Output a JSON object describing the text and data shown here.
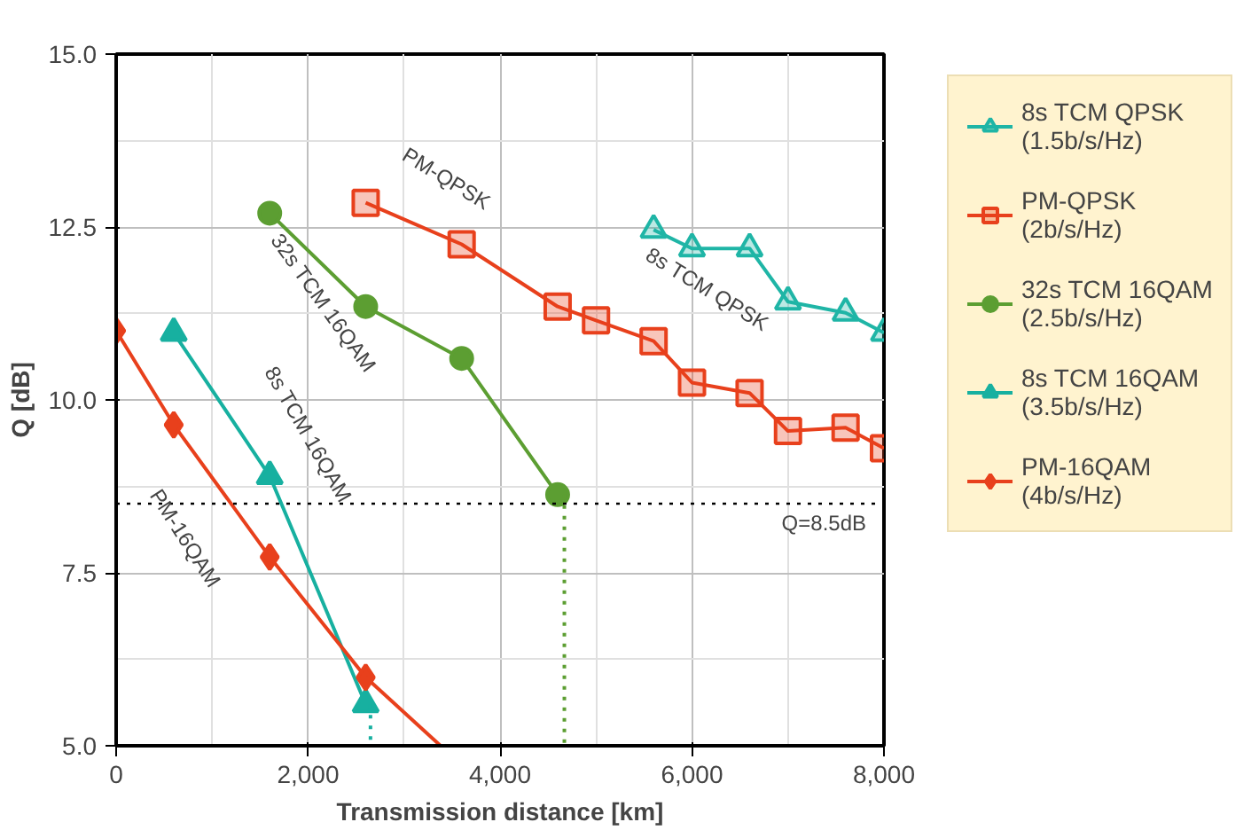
{
  "chart_data": {
    "type": "line",
    "xlabel": "Transmission distance [km]",
    "ylabel": "Q [dB]",
    "xlim": [
      0,
      8000
    ],
    "ylim": [
      5,
      15
    ],
    "xticks": [
      {
        "value": 0,
        "label": "0"
      },
      {
        "value": 2000,
        "label": "2,000"
      },
      {
        "value": 4000,
        "label": "4,000"
      },
      {
        "value": 6000,
        "label": "6,000"
      },
      {
        "value": 8000,
        "label": "8,000"
      }
    ],
    "yticks": [
      {
        "value": 5,
        "label": "5.0"
      },
      {
        "value": 7.5,
        "label": "7.5"
      },
      {
        "value": 10,
        "label": "10.0"
      },
      {
        "value": 12.5,
        "label": "12.5"
      },
      {
        "value": 15,
        "label": "15.0"
      }
    ],
    "grid": true,
    "legend": "right",
    "series": [
      {
        "name": "8s TCM QPSK\n(1.5b/s/Hz)",
        "color": "#1fb5a6",
        "marker": "triangle",
        "x": [
          5600,
          6000,
          6600,
          7000,
          7600,
          8000
        ],
        "values": [
          12.46,
          12.19,
          12.19,
          11.42,
          11.26,
          10.97
        ]
      },
      {
        "name": "PM-QPSK\n(2b/s/Hz)",
        "color": "#e8401c",
        "marker": "square",
        "x": [
          2600,
          3600,
          4600,
          5000,
          5600,
          6000,
          6600,
          7000,
          7600,
          8000
        ],
        "values": [
          12.85,
          12.25,
          11.35,
          11.15,
          10.85,
          10.25,
          10.1,
          9.55,
          9.6,
          9.3
        ]
      },
      {
        "name": "32s TCM 16QAM\n(2.5b/s/Hz)",
        "color": "#5c9e32",
        "marker": "circle",
        "x": [
          1600,
          2600,
          3600,
          4600
        ],
        "values": [
          12.7,
          11.35,
          10.6,
          8.63
        ]
      },
      {
        "name": "8s TCM 16QAM\n(3.5b/s/Hz)",
        "color": "#17b0a0",
        "marker": "triangle",
        "x": [
          600,
          1600,
          2600
        ],
        "values": [
          10.97,
          8.9,
          5.6
        ]
      },
      {
        "name": "PM-16QAM\n(4b/s/Hz)",
        "color": "#e8401c",
        "marker": "diamond",
        "x": [
          0,
          600,
          1600,
          2600
        ],
        "values": [
          11.0,
          9.64,
          7.73,
          5.99
        ]
      },
      {
        "color": "#e8401c",
        "marker": "none",
        "x": [
          2600,
          3380
        ],
        "values": [
          5.99,
          5.0
        ]
      },
      {
        "color": "#17b0a0",
        "marker": "none",
        "line_style": "dotted",
        "x": [
          2650,
          2650
        ],
        "values": [
          5.6,
          5.0
        ]
      },
      {
        "color": "#5c9e32",
        "marker": "none",
        "line_style": "dotted",
        "x": [
          4670,
          4670
        ],
        "values": [
          8.63,
          5.0
        ]
      }
    ],
    "ref_lines": [
      {
        "axis": "y",
        "value": 8.5,
        "label": "Q=8.5dB",
        "color": "#000000",
        "line_style": "dotted"
      }
    ],
    "annotations": [
      "PM-QPSK",
      "8s TCM QPSK",
      "32s TCM 16QAM",
      "8s TCM 16QAM",
      "PM-16QAM"
    ]
  }
}
